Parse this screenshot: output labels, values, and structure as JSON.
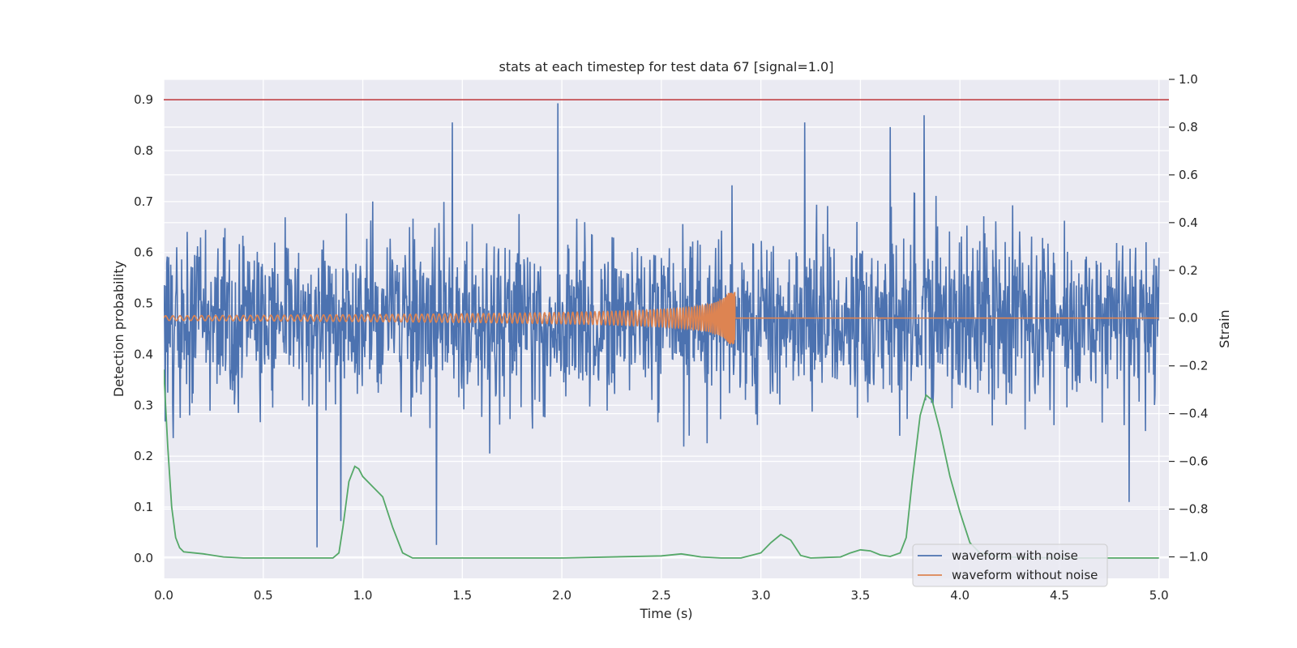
{
  "chart_data": {
    "type": "line",
    "title": "stats at each timestep for test data 67 [signal=1.0]",
    "xlabel": "Time (s)",
    "ylabel": "Detection probability",
    "y2label": "Strain",
    "xlim": [
      0.0,
      5.05
    ],
    "ylim": [
      -0.04,
      0.94
    ],
    "y2lim": [
      -1.09,
      1.0
    ],
    "xticks": [
      0.0,
      0.5,
      1.0,
      1.5,
      2.0,
      2.5,
      3.0,
      3.5,
      4.0,
      4.5,
      5.0
    ],
    "xtick_labels": [
      "0.0",
      "0.5",
      "1.0",
      "1.5",
      "2.0",
      "2.5",
      "3.0",
      "3.5",
      "4.0",
      "4.5",
      "5.0"
    ],
    "yticks": [
      0.0,
      0.1,
      0.2,
      0.3,
      0.4,
      0.5,
      0.6,
      0.7,
      0.8,
      0.9
    ],
    "ytick_labels": [
      "0.0",
      "0.1",
      "0.2",
      "0.3",
      "0.4",
      "0.5",
      "0.6",
      "0.7",
      "0.8",
      "0.9"
    ],
    "y2ticks": [
      -1.0,
      -0.8,
      -0.6,
      -0.4,
      -0.2,
      0.0,
      0.2,
      0.4,
      0.6,
      0.8,
      1.0
    ],
    "y2tick_labels": [
      "−1.0",
      "−0.8",
      "−0.6",
      "−0.4",
      "−0.2",
      "0.0",
      "0.2",
      "0.4",
      "0.6",
      "0.8",
      "1.0"
    ],
    "grid": true,
    "legend_position": "lower-right",
    "threshold": {
      "axis": "left",
      "y": 0.9,
      "color": "#c44e52"
    },
    "detection_probability": {
      "axis": "left",
      "color": "#55a868",
      "x": [
        0.0,
        0.02,
        0.04,
        0.06,
        0.08,
        0.1,
        0.2,
        0.3,
        0.4,
        0.6,
        0.85,
        0.88,
        0.9,
        0.93,
        0.96,
        0.98,
        1.0,
        1.05,
        1.1,
        1.15,
        1.2,
        1.25,
        1.5,
        2.0,
        2.5,
        2.6,
        2.65,
        2.7,
        2.8,
        2.9,
        3.0,
        3.05,
        3.1,
        3.15,
        3.2,
        3.25,
        3.4,
        3.45,
        3.5,
        3.55,
        3.6,
        3.65,
        3.7,
        3.73,
        3.76,
        3.8,
        3.83,
        3.86,
        3.9,
        3.95,
        4.0,
        4.05,
        4.1,
        4.2,
        4.5,
        5.0
      ],
      "y": [
        0.37,
        0.22,
        0.1,
        0.04,
        0.02,
        0.012,
        0.008,
        0.002,
        0.0,
        0.0,
        0.0,
        0.01,
        0.06,
        0.15,
        0.18,
        0.175,
        0.16,
        0.14,
        0.12,
        0.06,
        0.01,
        0.0,
        0.0,
        0.0,
        0.004,
        0.008,
        0.005,
        0.002,
        0.0,
        0.0,
        0.01,
        0.03,
        0.046,
        0.035,
        0.005,
        0.0,
        0.002,
        0.01,
        0.016,
        0.014,
        0.006,
        0.003,
        0.01,
        0.04,
        0.15,
        0.28,
        0.32,
        0.31,
        0.25,
        0.16,
        0.09,
        0.03,
        0.01,
        0.002,
        0.0,
        0.0
      ]
    },
    "series": [
      {
        "name": "waveform with noise",
        "axis": "right",
        "color": "#4c72b0",
        "x_range": [
          0.0,
          5.0
        ],
        "points": 2000,
        "typical_amplitude": 0.3,
        "spikes": [
          {
            "x": 1.98,
            "y": 0.9
          },
          {
            "x": 3.82,
            "y": 0.85
          },
          {
            "x": 1.45,
            "y": 0.82
          },
          {
            "x": 3.22,
            "y": 0.82
          },
          {
            "x": 3.65,
            "y": 0.8
          },
          {
            "x": 0.77,
            "y": -0.96
          },
          {
            "x": 1.37,
            "y": -0.95
          },
          {
            "x": 0.89,
            "y": -0.85
          },
          {
            "x": 4.85,
            "y": -0.77
          }
        ]
      },
      {
        "name": "waveform without noise",
        "axis": "right",
        "color": "#dd8452",
        "chirp_start": 0.0,
        "chirp_end": 2.87,
        "start_amplitude": 0.01,
        "peak_amplitude": 0.11,
        "after_merger": 0.0
      }
    ]
  }
}
